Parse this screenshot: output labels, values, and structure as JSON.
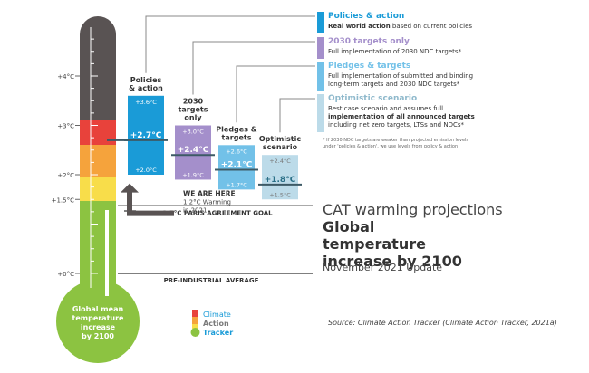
{
  "chart_data": {
    "type": "range-bar",
    "title": "CAT warming projections",
    "subtitle": "Global temperature increase by 2100",
    "update": "November 2021 Update",
    "source": "Source: Climate Action Tracker (Climate Action Tracker, 2021a)",
    "y_unit": "°C",
    "ylim": [
      0,
      5
    ],
    "y_ticks": [
      {
        "value": 0,
        "label": "+0°C"
      },
      {
        "value": 1.5,
        "label": "+1.5°C"
      },
      {
        "value": 2,
        "label": "+2°C"
      },
      {
        "value": 3,
        "label": "+3°C"
      },
      {
        "value": 4,
        "label": "+4°C"
      }
    ],
    "thermometer_label": "Global mean temperature increase by 2100",
    "scenarios": [
      {
        "name": "Policies & action",
        "low": 2.0,
        "mid": 2.7,
        "high": 3.6,
        "low_label": "+2.0°C",
        "mid_label": "+2.7°C",
        "high_label": "+3.6°C",
        "color": "#1a9bd7"
      },
      {
        "name": "2030 targets only",
        "low": 1.9,
        "mid": 2.4,
        "high": 3.0,
        "low_label": "+1.9°C",
        "mid_label": "+2.4°C",
        "high_label": "+3.0°C",
        "color": "#a48fcb"
      },
      {
        "name": "Pledges & targets",
        "low": 1.7,
        "mid": 2.1,
        "high": 2.6,
        "low_label": "+1.7°C",
        "mid_label": "+2.1°C",
        "high_label": "+2.6°C",
        "color": "#72c1e8"
      },
      {
        "name": "Optimistic scenario",
        "low": 1.5,
        "mid": 1.8,
        "high": 2.4,
        "low_label": "+1.5°C",
        "mid_label": "+1.8°C",
        "high_label": "+2.4°C",
        "color": "#bcdbe9"
      }
    ],
    "reference_lines": [
      {
        "value": 1.5,
        "label": "1.5°C PARIS AGREEMENT GOAL"
      },
      {
        "value": 0,
        "label": "PRE-INDUSTRIAL AVERAGE"
      }
    ],
    "current": {
      "value": 1.2,
      "title": "WE ARE HERE",
      "line1": "1.2°C Warming",
      "line2": "in 2021"
    },
    "legend": [
      {
        "title": "Policies & action",
        "desc_bold": "Real world action",
        "desc_rest": " based on current policies",
        "color": "#1a9bd7"
      },
      {
        "title": "2030 targets only",
        "desc": "Full implementation of 2030 NDC targets*",
        "color": "#a48fcb"
      },
      {
        "title": "Pledges & targets",
        "line1": "Full implementation of submitted and binding",
        "line2": "long-term targets and 2030 NDC targets*",
        "color": "#72c1e8"
      },
      {
        "title": "Optimistic scenario",
        "line1": "Best case scenario and assumes full",
        "line2": "implementation of all announced targets",
        "line3": "including net zero targets, LTSs and NDCs*",
        "color": "#bcdbe9"
      }
    ],
    "footnote_1": "* If 2030 NDC targets are weaker than projected emission levels",
    "footnote_2": "under 'policies & action', we use levels from policy & action",
    "logo": {
      "line1": "Climate",
      "line2": "Action",
      "line3": "Tracker"
    }
  }
}
